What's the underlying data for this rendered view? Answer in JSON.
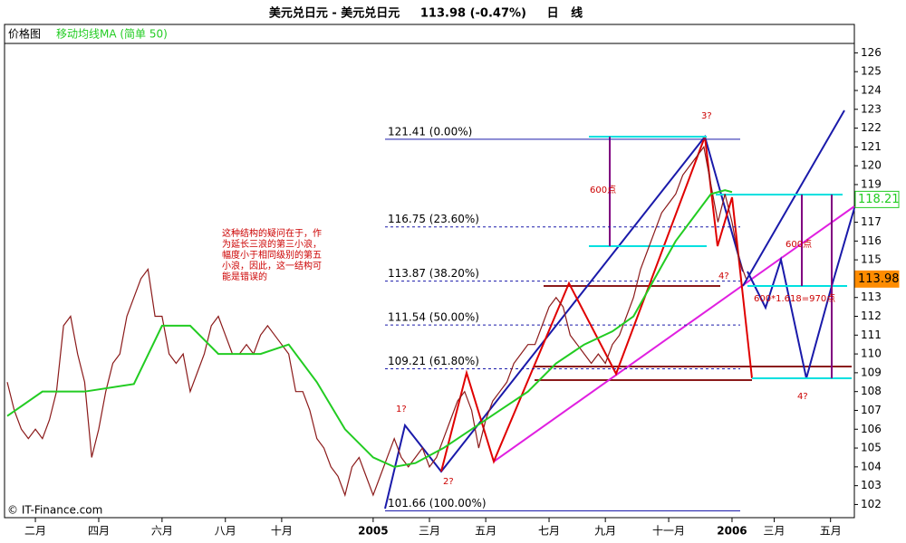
{
  "chart_data": {
    "type": "line",
    "title": "美元兑日元 - 美元兑日元     113.98 (-0.47%)     日   线",
    "panel_label": "价格图",
    "legend_label": "移动均线MA (简单 50)",
    "copyright": "© IT-Finance.com",
    "xlim": [
      0,
      120
    ],
    "xticks": [
      {
        "value": 4,
        "label": "二月"
      },
      {
        "value": 13,
        "label": "四月"
      },
      {
        "value": 22,
        "label": "六月"
      },
      {
        "value": 31,
        "label": "八月"
      },
      {
        "value": 39,
        "label": "十月"
      },
      {
        "value": 52,
        "label": "2005"
      },
      {
        "value": 60,
        "label": "三月"
      },
      {
        "value": 68,
        "label": "五月"
      },
      {
        "value": 77,
        "label": "七月"
      },
      {
        "value": 85,
        "label": "九月"
      },
      {
        "value": 94,
        "label": "十一月"
      },
      {
        "value": 103,
        "label": "2006"
      },
      {
        "value": 109,
        "label": "三月"
      },
      {
        "value": 117,
        "label": "五月"
      }
    ],
    "ylim": [
      101.3,
      126.5
    ],
    "yticks": [
      102,
      103,
      104,
      105,
      106,
      107,
      108,
      109,
      110,
      111,
      112,
      113,
      114,
      115,
      116,
      117,
      118,
      119,
      120,
      121,
      122,
      123,
      124,
      125,
      126
    ],
    "series": [
      {
        "name": "美元兑日元",
        "color": "#8b1a1a",
        "x": [
          0,
          1,
          2,
          3,
          4,
          5,
          6,
          7,
          8,
          9,
          10,
          11,
          12,
          13,
          14,
          15,
          16,
          17,
          18,
          19,
          20,
          21,
          22,
          23,
          24,
          25,
          26,
          27,
          28,
          29,
          30,
          31,
          32,
          33,
          34,
          35,
          36,
          37,
          38,
          39,
          40,
          41,
          42,
          43,
          44,
          45,
          46,
          47,
          48,
          49,
          50,
          51,
          52,
          53,
          54,
          55,
          56,
          57,
          58,
          59,
          60,
          61,
          62,
          63,
          64,
          65,
          66,
          67,
          68,
          69,
          70,
          71,
          72,
          73,
          74,
          75,
          76,
          77,
          78,
          79,
          80,
          81,
          82,
          83,
          84,
          85,
          86,
          87,
          88,
          89,
          90,
          91,
          92,
          93,
          94,
          95,
          96,
          97,
          98,
          99,
          100,
          101,
          102,
          103,
          104,
          105
        ],
        "values": [
          108.5,
          107,
          106,
          105.5,
          106,
          105.5,
          106.5,
          108,
          111.5,
          112,
          110,
          108.5,
          104.5,
          106,
          108,
          109.5,
          110,
          112,
          113,
          114,
          114.5,
          112,
          112,
          110,
          109.5,
          110,
          108,
          109,
          110,
          111.5,
          112,
          111,
          110,
          110,
          110.5,
          110,
          111,
          111.5,
          111,
          110.5,
          110,
          108,
          108,
          107,
          105.5,
          105,
          104,
          103.5,
          102.5,
          104,
          104.5,
          103.5,
          102.5,
          103.5,
          104.5,
          105.5,
          104.5,
          104,
          104.5,
          105,
          104,
          104.5,
          105.5,
          106.5,
          107.5,
          108,
          107,
          105,
          106.5,
          107.5,
          108,
          108.5,
          109.5,
          110,
          110.5,
          110.5,
          111.5,
          112.5,
          113,
          112.5,
          111,
          110.5,
          110,
          109.5,
          110,
          109.5,
          110.5,
          111,
          112,
          113,
          114.5,
          115.5,
          116.5,
          117.5,
          118,
          118.5,
          119.5,
          120,
          120.5,
          121,
          119,
          117,
          118.5,
          117,
          115,
          114
        ]
      },
      {
        "name": "移动均线MA",
        "color": "#22cc22",
        "x": [
          0,
          5,
          11,
          18,
          22,
          26,
          30,
          36,
          40,
          44,
          48,
          52,
          55,
          58,
          62,
          66,
          70,
          74,
          78,
          82,
          86,
          89,
          92,
          95,
          98,
          100,
          102,
          103
        ],
        "values": [
          106.7,
          108,
          108,
          108.4,
          111.5,
          111.5,
          110,
          110,
          110.5,
          108.5,
          106,
          104.5,
          104,
          104.2,
          105,
          106,
          107,
          108,
          109.5,
          110.5,
          111.2,
          112,
          114,
          116,
          117.5,
          118.5,
          118.7,
          118.6
        ]
      }
    ],
    "fib_levels": [
      {
        "value": 121.41,
        "label": "121.41 (0.00%)"
      },
      {
        "value": 116.75,
        "label": "116.75 (23.60%)"
      },
      {
        "value": 113.87,
        "label": "113.87 (38.20%)"
      },
      {
        "value": 111.54,
        "label": "111.54 (50.00%)"
      },
      {
        "value": 109.21,
        "label": "109.21 (61.80%)"
      },
      {
        "value": 101.66,
        "label": "101.66 (100.00%)"
      }
    ],
    "price_tags": [
      {
        "value": 118.21,
        "color": "#22cc22"
      },
      {
        "value": 113.98,
        "color": "#ff8c00"
      }
    ],
    "annotations": {
      "wave1": "1?",
      "wave2": "2?",
      "wave3": "3?",
      "wave4a": "4?",
      "wave4b": "4?",
      "points600a": "600点",
      "points600b": "600点",
      "target": "600*1.618=970点",
      "note": [
        "这种结构的疑问在于，作",
        "为延长三浪的第三小浪，",
        "幅度小于相同级别的第五",
        "小浪，因此，这一结构可",
        "能是错误的"
      ]
    }
  }
}
